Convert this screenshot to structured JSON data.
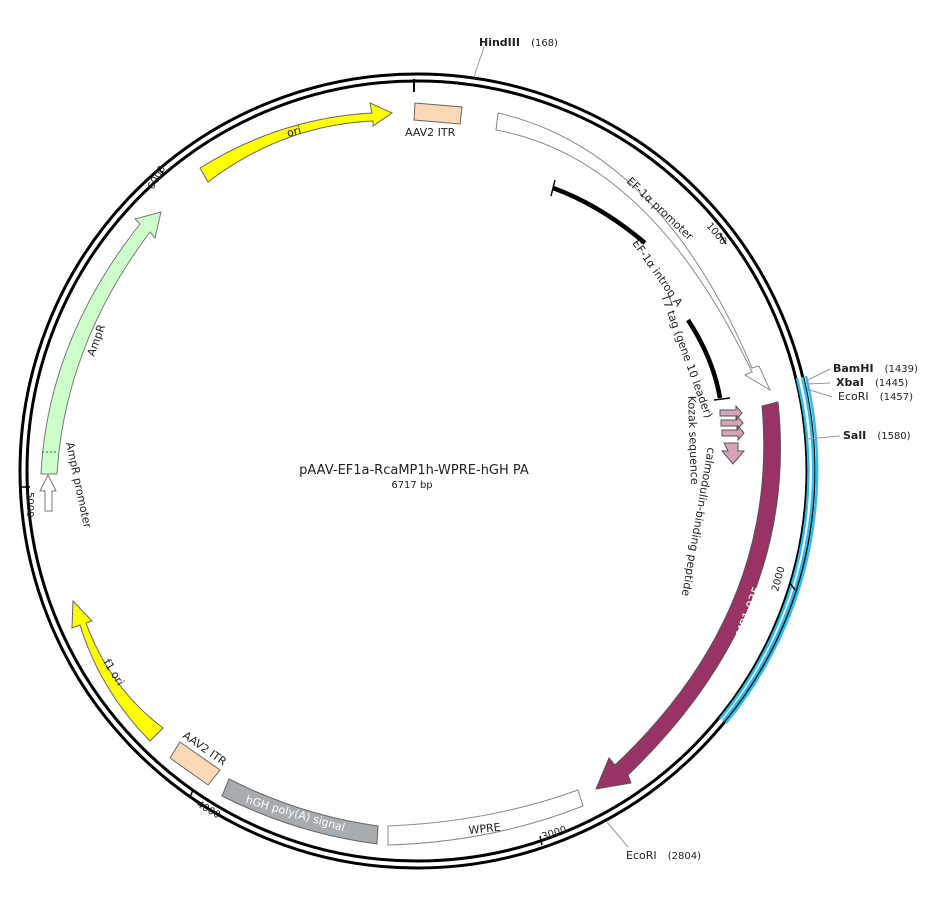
{
  "plasmid": {
    "name": "pAAV-EF1a-RcaMP1h-WPRE-hGH PA",
    "size_label": "6717 bp",
    "length": 6717
  },
  "ticks": [
    {
      "pos": 1000,
      "label": "1000"
    },
    {
      "pos": 2000,
      "label": "2000"
    },
    {
      "pos": 3000,
      "label": "3000"
    },
    {
      "pos": 4000,
      "label": "4000"
    },
    {
      "pos": 5000,
      "label": "5000"
    },
    {
      "pos": 6000,
      "label": "6000"
    }
  ],
  "sites": [
    {
      "name": "HindIII",
      "pos_label": "(168)",
      "bold": true,
      "pos": 168
    },
    {
      "name": "BamHI",
      "pos_label": "(1439)",
      "bold": true,
      "pos": 1439
    },
    {
      "name": "XbaI",
      "pos_label": "(1445)",
      "bold": true,
      "pos": 1445
    },
    {
      "name": "EcoRI",
      "pos_label": "(1457)",
      "bold": false,
      "pos": 1457
    },
    {
      "name": "SalI",
      "pos_label": "(1580)",
      "bold": true,
      "pos": 1580
    },
    {
      "name": "EcoRI",
      "pos_label": "(2804)",
      "bold": false,
      "pos": 2804
    }
  ],
  "features": [
    {
      "name": "ori",
      "color": "#ffff00"
    },
    {
      "name": "AAV2 ITR",
      "color": "#fcd9b6"
    },
    {
      "name": "EF-1α promoter",
      "color": "#ffffff"
    },
    {
      "name": "EF-1α intron A",
      "color": "#000000"
    },
    {
      "name": "T7 tag (gene 10 leader)",
      "color": "#000000"
    },
    {
      "name": "Kozak sequence",
      "color": "#000000"
    },
    {
      "name": "calmodulin-binding peptide",
      "color": "#d7a3b9"
    },
    {
      "name": "RcaMP1.035",
      "color": "#993366"
    },
    {
      "name": "WPRE",
      "color": "#ffffff"
    },
    {
      "name": "hGH poly(A) signal",
      "color": "#a7acb0"
    },
    {
      "name": "AAV2 ITR",
      "color": "#fcd9b6"
    },
    {
      "name": "f1 ori",
      "color": "#ffff00"
    },
    {
      "name": "AmpR promoter",
      "color": "#ffffff"
    },
    {
      "name": "AmpR",
      "color": "#ccffcc"
    }
  ],
  "colors": {
    "backbone": "#000000",
    "insert_highlight": "#33bbe6"
  }
}
